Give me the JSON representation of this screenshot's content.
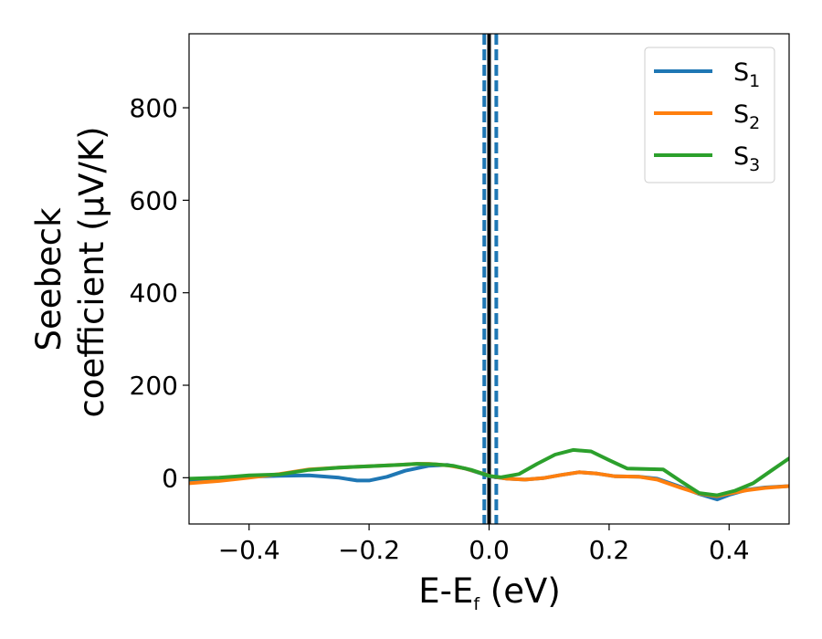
{
  "chart_data": {
    "type": "line",
    "xlabel": "E-E",
    "xlabel_sub": "f",
    "xlabel_tail": " (eV)",
    "ylabel_line1": "Seebeck",
    "ylabel_line2": "coefficient  (μV/K)",
    "xlim": [
      -0.5,
      0.5
    ],
    "ylim": [
      -100,
      960
    ],
    "xticks": [
      -0.4,
      -0.2,
      0.0,
      0.2,
      0.4
    ],
    "xtick_labels": [
      "−0.4",
      "−0.2",
      "0.0",
      "0.2",
      "0.4"
    ],
    "yticks": [
      0,
      200,
      400,
      600,
      800
    ],
    "ytick_labels": [
      "0",
      "200",
      "400",
      "600",
      "800"
    ],
    "grid": false,
    "legend_position": "top-right",
    "vertical_lines": [
      {
        "x": -0.008,
        "style": "dashed",
        "color": "#1f77b4"
      },
      {
        "x": 0.012,
        "style": "dashed",
        "color": "#1f77b4"
      },
      {
        "x": 0.0,
        "style": "solid",
        "color": "#000000"
      }
    ],
    "series": [
      {
        "name": "S",
        "sub": "1",
        "color": "#1f77b4",
        "points": [
          [
            -0.5,
            -5
          ],
          [
            -0.45,
            -2
          ],
          [
            -0.4,
            2
          ],
          [
            -0.35,
            4
          ],
          [
            -0.3,
            5
          ],
          [
            -0.25,
            0
          ],
          [
            -0.22,
            -6
          ],
          [
            -0.2,
            -6
          ],
          [
            -0.17,
            2
          ],
          [
            -0.14,
            15
          ],
          [
            -0.1,
            26
          ],
          [
            -0.07,
            28
          ],
          [
            -0.04,
            20
          ],
          [
            -0.01,
            8
          ],
          [
            0.0,
            3
          ],
          [
            0.03,
            -2
          ],
          [
            0.06,
            -4
          ],
          [
            0.09,
            -1
          ],
          [
            0.12,
            6
          ],
          [
            0.15,
            12
          ],
          [
            0.18,
            9
          ],
          [
            0.21,
            3
          ],
          [
            0.25,
            2
          ],
          [
            0.28,
            -2
          ],
          [
            0.32,
            -20
          ],
          [
            0.35,
            -35
          ],
          [
            0.38,
            -47
          ],
          [
            0.4,
            -37
          ],
          [
            0.43,
            -26
          ],
          [
            0.46,
            -21
          ],
          [
            0.5,
            -18
          ]
        ]
      },
      {
        "name": "S",
        "sub": "2",
        "color": "#ff7f0e",
        "points": [
          [
            -0.5,
            -12
          ],
          [
            -0.45,
            -7
          ],
          [
            -0.4,
            0
          ],
          [
            -0.35,
            8
          ],
          [
            -0.3,
            18
          ],
          [
            -0.25,
            22
          ],
          [
            -0.2,
            25
          ],
          [
            -0.15,
            28
          ],
          [
            -0.12,
            30
          ],
          [
            -0.1,
            30
          ],
          [
            -0.07,
            27
          ],
          [
            -0.04,
            20
          ],
          [
            -0.01,
            9
          ],
          [
            0.0,
            4
          ],
          [
            0.03,
            -2
          ],
          [
            0.06,
            -4
          ],
          [
            0.09,
            -1
          ],
          [
            0.12,
            6
          ],
          [
            0.15,
            12
          ],
          [
            0.18,
            9
          ],
          [
            0.21,
            3
          ],
          [
            0.25,
            2
          ],
          [
            0.28,
            -4
          ],
          [
            0.32,
            -22
          ],
          [
            0.35,
            -34
          ],
          [
            0.38,
            -40
          ],
          [
            0.4,
            -34
          ],
          [
            0.43,
            -27
          ],
          [
            0.46,
            -22
          ],
          [
            0.5,
            -18
          ]
        ]
      },
      {
        "name": "S",
        "sub": "3",
        "color": "#2ca02c",
        "points": [
          [
            -0.5,
            -2
          ],
          [
            -0.45,
            0
          ],
          [
            -0.4,
            5
          ],
          [
            -0.35,
            7
          ],
          [
            -0.3,
            17
          ],
          [
            -0.25,
            22
          ],
          [
            -0.2,
            25
          ],
          [
            -0.15,
            28
          ],
          [
            -0.12,
            30
          ],
          [
            -0.09,
            29
          ],
          [
            -0.06,
            26
          ],
          [
            -0.03,
            17
          ],
          [
            0.0,
            4
          ],
          [
            0.02,
            1
          ],
          [
            0.05,
            8
          ],
          [
            0.08,
            30
          ],
          [
            0.11,
            50
          ],
          [
            0.14,
            60
          ],
          [
            0.17,
            57
          ],
          [
            0.2,
            38
          ],
          [
            0.23,
            20
          ],
          [
            0.26,
            19
          ],
          [
            0.29,
            18
          ],
          [
            0.32,
            -8
          ],
          [
            0.35,
            -33
          ],
          [
            0.38,
            -38
          ],
          [
            0.41,
            -28
          ],
          [
            0.44,
            -12
          ],
          [
            0.47,
            15
          ],
          [
            0.5,
            42
          ]
        ]
      }
    ]
  }
}
